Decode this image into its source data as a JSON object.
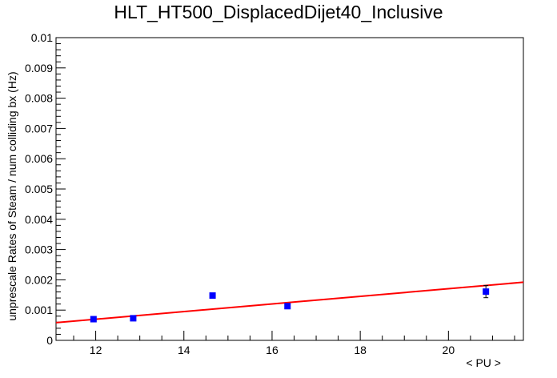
{
  "chart_data": {
    "type": "scatter",
    "title": "HLT_HT500_DisplacedDijet40_Inclusive",
    "xlabel": "< PU >",
    "ylabel": "unprescale Rates of Steam / num colliding bx (Hz)",
    "xlim": [
      11.1,
      21.7
    ],
    "ylim": [
      0,
      0.01
    ],
    "x_ticks": [
      12,
      14,
      16,
      18,
      20
    ],
    "x_tick_labels": [
      "12",
      "14",
      "16",
      "18",
      "20"
    ],
    "y_ticks": [
      0,
      0.001,
      0.002,
      0.003,
      0.004,
      0.005,
      0.006,
      0.007,
      0.008,
      0.009,
      0.01
    ],
    "y_tick_labels": [
      "0",
      "0.001",
      "0.002",
      "0.003",
      "0.004",
      "0.005",
      "0.006",
      "0.007",
      "0.008",
      "0.009",
      "0.01"
    ],
    "grid": false,
    "legend": "none",
    "points": [
      {
        "x": 11.95,
        "y": 0.0007,
        "err": 5e-05
      },
      {
        "x": 12.85,
        "y": 0.00073,
        "err": 5e-05
      },
      {
        "x": 14.65,
        "y": 0.00148,
        "err": 8e-05
      },
      {
        "x": 16.35,
        "y": 0.00113,
        "err": 7e-05
      },
      {
        "x": 20.85,
        "y": 0.00161,
        "err": 0.0002
      }
    ],
    "fit": {
      "x": [
        11.1,
        21.7
      ],
      "y": [
        0.000585,
        0.00192
      ]
    },
    "colors": {
      "points": "#0000ff",
      "fit": "#ff0000",
      "axes": "#000000"
    }
  }
}
